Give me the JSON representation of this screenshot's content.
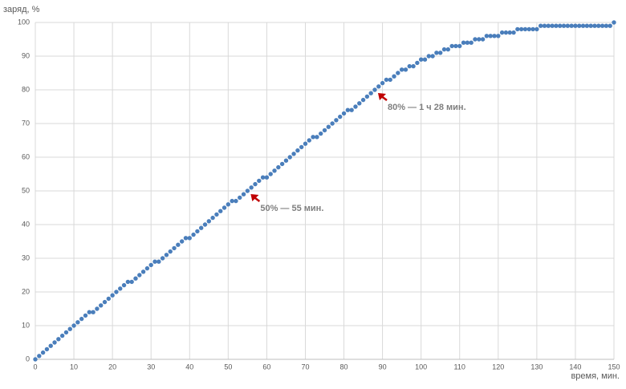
{
  "chart_data": {
    "type": "scatter",
    "y_label": "заряд, %",
    "x_label": "время, мин.",
    "xlim": [
      0,
      150
    ],
    "xticks": [
      0,
      10,
      20,
      30,
      40,
      50,
      60,
      70,
      80,
      90,
      100,
      110,
      120,
      130,
      140,
      150
    ],
    "ylim": [
      0,
      100
    ],
    "yticks": [
      0,
      10,
      20,
      30,
      40,
      50,
      60,
      70,
      80,
      90,
      100
    ],
    "grid": true,
    "series": [
      {
        "color": "#4a7ebb",
        "x": [
          0,
          1,
          2,
          3,
          4,
          5,
          6,
          7,
          8,
          9,
          10,
          11,
          12,
          13,
          14,
          15,
          16,
          17,
          18,
          19,
          20,
          21,
          22,
          23,
          24,
          25,
          26,
          27,
          28,
          29,
          30,
          31,
          32,
          33,
          34,
          35,
          36,
          37,
          38,
          39,
          40,
          41,
          42,
          43,
          44,
          45,
          46,
          47,
          48,
          49,
          50,
          51,
          52,
          53,
          54,
          55,
          56,
          57,
          58,
          59,
          60,
          61,
          62,
          63,
          64,
          65,
          66,
          67,
          68,
          69,
          70,
          71,
          72,
          73,
          74,
          75,
          76,
          77,
          78,
          79,
          80,
          81,
          82,
          83,
          84,
          85,
          86,
          87,
          88,
          89,
          90,
          91,
          92,
          93,
          94,
          95,
          96,
          97,
          98,
          99,
          100,
          101,
          102,
          103,
          104,
          105,
          106,
          107,
          108,
          109,
          110,
          111,
          112,
          113,
          114,
          115,
          116,
          117,
          118,
          119,
          120,
          121,
          122,
          123,
          124,
          125,
          126,
          127,
          128,
          129,
          130,
          131,
          132,
          133,
          134,
          135,
          136,
          137,
          138,
          139,
          140,
          141,
          142,
          143,
          144,
          145,
          146,
          147,
          148,
          149,
          150
        ],
        "values": [
          0,
          1,
          2,
          3,
          4,
          5,
          6,
          7,
          8,
          9,
          10,
          11,
          12,
          13,
          14,
          14,
          15,
          16,
          17,
          18,
          19,
          20,
          21,
          22,
          23,
          23,
          24,
          25,
          26,
          27,
          28,
          29,
          29,
          30,
          31,
          32,
          33,
          34,
          35,
          36,
          36,
          37,
          38,
          39,
          40,
          41,
          42,
          43,
          44,
          45,
          46,
          47,
          47,
          48,
          49,
          50,
          51,
          52,
          53,
          54,
          54,
          55,
          56,
          57,
          58,
          59,
          60,
          61,
          62,
          63,
          64,
          65,
          66,
          66,
          67,
          68,
          69,
          70,
          71,
          72,
          73,
          74,
          74,
          75,
          76,
          77,
          78,
          79,
          80,
          81,
          82,
          83,
          83,
          84,
          85,
          86,
          86,
          87,
          87,
          88,
          89,
          89,
          90,
          90,
          91,
          91,
          92,
          92,
          93,
          93,
          93,
          94,
          94,
          94,
          95,
          95,
          95,
          96,
          96,
          96,
          96,
          97,
          97,
          97,
          97,
          98,
          98,
          98,
          98,
          98,
          98,
          99,
          99,
          99,
          99,
          99,
          99,
          99,
          99,
          99,
          99,
          99,
          99,
          99,
          99,
          99,
          99,
          99,
          99,
          99,
          100
        ]
      }
    ],
    "annotations": [
      {
        "text": "50% — 55 мин.",
        "x": 55,
        "y": 50,
        "color": "#c00000"
      },
      {
        "text": "80% — 1 ч 28 мин.",
        "x": 88,
        "y": 80,
        "color": "#c00000"
      }
    ]
  }
}
